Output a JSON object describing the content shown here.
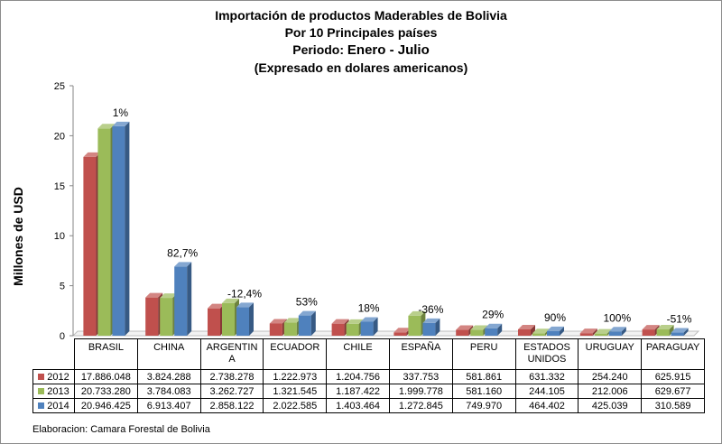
{
  "title": {
    "line1": "Importación de productos Maderables de Bolivia",
    "line2": "Por 10 Principales países",
    "line3_prefix": "Periodo: ",
    "line3_period": "Enero - Julio",
    "line4": "(Expresado en dolares americanos)"
  },
  "source": "Elaboracion: Camara Forestal de Bolivia",
  "colors": {
    "2012": "#c0504d",
    "2013": "#9bbb59",
    "2014": "#4f81bd"
  },
  "chart_data": {
    "type": "bar",
    "title": "Importación de productos Maderables de Bolivia Por 10 Principales países Periodo: Enero - Julio (Expresado en dolares americanos)",
    "ylabel": "Millones de USD",
    "ylim": [
      0,
      25
    ],
    "yticks": [
      "0",
      "5",
      "10",
      "15",
      "20",
      "25"
    ],
    "grid": false,
    "legend": "table",
    "categories": [
      {
        "lines": [
          "BRASIL"
        ]
      },
      {
        "lines": [
          "CHINA"
        ]
      },
      {
        "lines": [
          "ARGENTIN",
          "A"
        ]
      },
      {
        "lines": [
          "ECUADOR"
        ]
      },
      {
        "lines": [
          "CHILE"
        ]
      },
      {
        "lines": [
          "ESPAÑA"
        ]
      },
      {
        "lines": [
          "PERU"
        ]
      },
      {
        "lines": [
          "ESTADOS",
          "UNIDOS"
        ]
      },
      {
        "lines": [
          "URUGUAY"
        ]
      },
      {
        "lines": [
          "PARAGUAY"
        ]
      }
    ],
    "series": [
      {
        "name": "2012",
        "values": [
          17.886048,
          3.824288,
          2.738278,
          1.222973,
          1.204756,
          0.337753,
          0.581861,
          0.631332,
          0.25424,
          0.625915
        ],
        "labels": [
          "17.886.048",
          "3.824.288",
          "2.738.278",
          "1.222.973",
          "1.204.756",
          "337.753",
          "581.861",
          "631.332",
          "254.240",
          "625.915"
        ]
      },
      {
        "name": "2013",
        "values": [
          20.73328,
          3.784083,
          3.262727,
          1.321545,
          1.187422,
          1.999778,
          0.58116,
          0.244105,
          0.212006,
          0.629677
        ],
        "labels": [
          "20.733.280",
          "3.784.083",
          "3.262.727",
          "1.321.545",
          "1.187.422",
          "1.999.778",
          "581.160",
          "244.105",
          "212.006",
          "629.677"
        ]
      },
      {
        "name": "2014",
        "values": [
          20.946425,
          6.913407,
          2.858122,
          2.022585,
          1.403464,
          1.272845,
          0.74997,
          0.464402,
          0.425039,
          0.310589
        ],
        "labels": [
          "20.946.425",
          "6.913.407",
          "2.858.122",
          "2.022.585",
          "1.403.464",
          "1.272.845",
          "749.970",
          "464.402",
          "425.039",
          "310.589"
        ]
      }
    ],
    "annotations": [
      "1%",
      "82,7%",
      "-12,4%",
      "53%",
      "18%",
      "-36%",
      "29%",
      "90%",
      "100%",
      "-51%"
    ]
  }
}
